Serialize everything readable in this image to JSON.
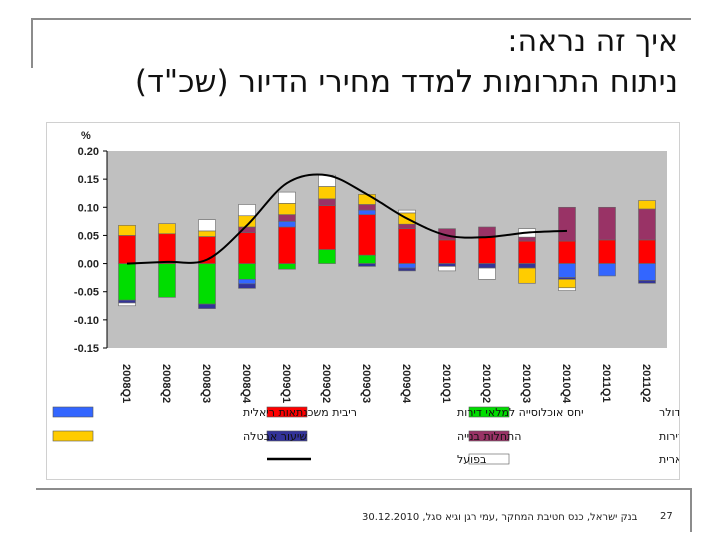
{
  "slide": {
    "title_line1": "איך זה נראה:",
    "title_line2": "ניתוח התרומות למדד מחירי הדיור (שכ\"ד)",
    "footer": "30.12.2010 ,בנק ישראל, כנס חטיבת המחקר ,עמי רגן וגיא סגל",
    "page_number": "27"
  },
  "chart_data": {
    "type": "stacked-bar-with-line",
    "ylabel": "%",
    "ylim": [
      -0.15,
      0.2
    ],
    "yticks": [
      "0.20",
      "0.15",
      "0.10",
      "0.05",
      "0.00",
      "-0.05",
      "-0.10",
      "-0.15"
    ],
    "ytick_values": [
      0.2,
      0.15,
      0.1,
      0.05,
      0.0,
      -0.05,
      -0.1,
      -0.15
    ],
    "categories": [
      "2008Q1",
      "2008Q2",
      "2008Q3",
      "2008Q4",
      "2009Q1",
      "2009Q2",
      "2009Q3",
      "2009Q4",
      "2010Q1",
      "2010Q2",
      "2010Q3",
      "2010Q4",
      "2011Q1",
      "2011Q2"
    ],
    "series": [
      {
        "key": "dollar",
        "name": "פיחות הדולר",
        "color": "#00dd00",
        "values": [
          -0.065,
          -0.06,
          -0.072,
          -0.028,
          -0.01,
          0.025,
          0.015,
          0.0,
          0.0,
          0.0,
          0.0,
          0.0,
          0.0,
          0.0
        ]
      },
      {
        "key": "ratio",
        "name": "יחס אוכלוסייה למלאי דירות",
        "color": "#ff0000",
        "values": [
          0.05,
          0.053,
          0.048,
          0.055,
          0.065,
          0.078,
          0.072,
          0.062,
          0.042,
          0.048,
          0.04,
          0.04,
          0.042,
          0.042
        ]
      },
      {
        "key": "rate",
        "name": "ריבית משכנתאות ריאלית",
        "color": "#3366ff",
        "values": [
          0.0,
          0.0,
          0.0,
          -0.008,
          0.01,
          0.0,
          0.008,
          -0.008,
          0.0,
          0.0,
          0.0,
          -0.025,
          -0.022,
          -0.03
        ]
      },
      {
        "key": "prices",
        "name": "מחירי דירות",
        "color": "#993366",
        "values": [
          0.0,
          0.0,
          0.0,
          0.01,
          0.012,
          0.012,
          0.01,
          0.008,
          0.02,
          0.017,
          0.007,
          0.06,
          0.058,
          0.055
        ]
      },
      {
        "key": "starts",
        "name": "התחלות בנייה",
        "color": "#333399",
        "values": [
          -0.005,
          0.0,
          -0.008,
          -0.008,
          0.0,
          0.0,
          -0.005,
          -0.005,
          -0.005,
          -0.008,
          -0.008,
          -0.003,
          0.0,
          -0.005
        ]
      },
      {
        "key": "unemp",
        "name": "שיעור אבטלה",
        "color": "#ffcc00",
        "values": [
          0.018,
          0.018,
          0.01,
          0.02,
          0.02,
          0.022,
          0.018,
          0.02,
          0.0,
          0.0,
          -0.027,
          -0.015,
          0.0,
          0.015
        ]
      },
      {
        "key": "residual",
        "name": "שארית",
        "color": "#ffffff",
        "values": [
          -0.005,
          0.0,
          0.02,
          0.02,
          0.02,
          0.02,
          0.0,
          0.005,
          -0.008,
          -0.02,
          0.015,
          -0.005,
          0.0,
          0.0
        ]
      }
    ],
    "actual_line": {
      "name": "בפועל",
      "color": "#000000",
      "values": [
        0.0,
        0.003,
        0.007,
        0.068,
        0.143,
        0.157,
        0.123,
        0.08,
        0.05,
        0.047,
        0.055,
        0.058
      ]
    },
    "legend": [
      [
        "dollar",
        "ratio",
        "rate"
      ],
      [
        "prices",
        "starts",
        "unemp"
      ],
      [
        "residual",
        "actual_line"
      ]
    ],
    "plot_background": "#c0c0c0"
  }
}
